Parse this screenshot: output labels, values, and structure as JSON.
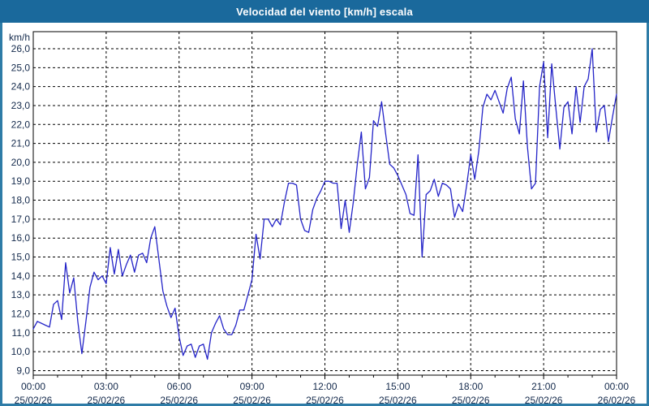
{
  "window": {
    "title": "Velocidad del viento [km/h] escala"
  },
  "colors": {
    "titlebar_bg": "#1a699c",
    "title_text": "#ffffff",
    "frame": "#2e7ca7",
    "plot_background": "#ffffff",
    "grid": "#000000",
    "axis_text": "#13294b",
    "line": "#2424c8"
  },
  "chart_data": {
    "type": "line",
    "title": "Velocidad del viento [km/h] escala",
    "ylabel": "km/h",
    "xlabel": "",
    "ylim": [
      9,
      26
    ],
    "xlim_hours": [
      0,
      24
    ],
    "grid": "dashed-black-on",
    "legend": "none",
    "y_tick_values": [
      26,
      25,
      24,
      23,
      22,
      21,
      20,
      19,
      18,
      17,
      16,
      15,
      14,
      13,
      12,
      11,
      10,
      9
    ],
    "y_tick_labels": [
      "26,0",
      "25,0",
      "24,0",
      "23,0",
      "22,0",
      "21,0",
      "20,0",
      "19,0",
      "18,0",
      "17,0",
      "16,0",
      "15,0",
      "14,0",
      "13,0",
      "12,0",
      "11,0",
      "10,0",
      "9,0"
    ],
    "x_ticks": [
      {
        "hours": 0,
        "time": "00:00",
        "date": "25/02/26"
      },
      {
        "hours": 3,
        "time": "03:00",
        "date": "25/02/26"
      },
      {
        "hours": 6,
        "time": "06:00",
        "date": "25/02/26"
      },
      {
        "hours": 9,
        "time": "09:00",
        "date": "25/02/26"
      },
      {
        "hours": 12,
        "time": "12:00",
        "date": "25/02/26"
      },
      {
        "hours": 15,
        "time": "15:00",
        "date": "25/02/26"
      },
      {
        "hours": 18,
        "time": "18:00",
        "date": "25/02/26"
      },
      {
        "hours": 21,
        "time": "21:00",
        "date": "25/02/26"
      },
      {
        "hours": 24,
        "time": "00:00",
        "date": "26/02/26"
      }
    ],
    "x_minor_tick_every_hours": 1,
    "series": [
      {
        "name": "Velocidad del viento",
        "color": "#2424c8",
        "x_minutes": [
          0,
          10,
          20,
          30,
          40,
          50,
          60,
          70,
          80,
          90,
          100,
          110,
          120,
          130,
          140,
          150,
          160,
          170,
          180,
          190,
          200,
          210,
          220,
          230,
          240,
          250,
          260,
          270,
          280,
          290,
          300,
          310,
          320,
          330,
          340,
          350,
          360,
          370,
          380,
          390,
          400,
          410,
          420,
          430,
          440,
          450,
          460,
          470,
          480,
          490,
          500,
          510,
          520,
          530,
          540,
          550,
          560,
          570,
          580,
          590,
          600,
          610,
          620,
          630,
          640,
          650,
          660,
          670,
          680,
          690,
          700,
          710,
          720,
          730,
          740,
          750,
          760,
          770,
          780,
          790,
          800,
          810,
          820,
          830,
          840,
          850,
          860,
          870,
          880,
          890,
          900,
          910,
          920,
          930,
          940,
          950,
          960,
          970,
          980,
          990,
          1000,
          1010,
          1020,
          1030,
          1040,
          1050,
          1060,
          1070,
          1080,
          1090,
          1100,
          1110,
          1120,
          1130,
          1140,
          1150,
          1160,
          1170,
          1180,
          1190,
          1200,
          1210,
          1220,
          1230,
          1240,
          1250,
          1260,
          1270,
          1280,
          1290,
          1300,
          1310,
          1320,
          1330,
          1340,
          1350,
          1360,
          1370,
          1380,
          1390,
          1400,
          1410,
          1420,
          1430,
          1440
        ],
        "values": [
          11.2,
          11.6,
          11.5,
          11.4,
          11.3,
          12.5,
          12.7,
          11.7,
          14.7,
          13.1,
          13.9,
          11.6,
          9.9,
          11.6,
          13.4,
          14.2,
          13.8,
          14.0,
          13.6,
          15.5,
          14.1,
          15.4,
          14.0,
          14.6,
          15.1,
          14.2,
          15.1,
          15.2,
          14.7,
          16.0,
          16.6,
          14.9,
          13.2,
          12.4,
          11.8,
          12.3,
          10.8,
          9.8,
          10.3,
          10.4,
          9.7,
          10.3,
          10.4,
          9.6,
          11.0,
          11.5,
          11.9,
          11.2,
          10.9,
          10.9,
          11.4,
          12.2,
          12.2,
          13.0,
          13.8,
          16.2,
          14.9,
          17.0,
          17.0,
          16.6,
          17.0,
          16.7,
          17.9,
          18.9,
          18.9,
          18.8,
          17.0,
          16.4,
          16.3,
          17.5,
          18.1,
          18.5,
          19.0,
          19.0,
          18.9,
          18.9,
          16.5,
          18.0,
          16.3,
          17.9,
          19.9,
          21.6,
          18.6,
          19.2,
          22.2,
          21.9,
          23.2,
          21.5,
          19.9,
          19.7,
          19.3,
          18.8,
          18.3,
          17.3,
          17.2,
          20.4,
          15.0,
          18.3,
          18.5,
          19.1,
          18.2,
          18.9,
          18.8,
          18.6,
          17.1,
          17.8,
          17.4,
          18.8,
          20.4,
          19.1,
          20.6,
          22.9,
          23.6,
          23.3,
          23.8,
          23.2,
          22.6,
          23.9,
          24.5,
          22.3,
          21.5,
          24.3,
          20.8,
          18.6,
          18.9,
          24.0,
          25.3,
          21.3,
          25.2,
          22.9,
          20.7,
          22.9,
          23.2,
          21.5,
          24.0,
          22.1,
          24.0,
          24.4,
          26.0,
          21.6,
          22.8,
          23.0,
          21.1,
          22.4,
          23.6
        ]
      }
    ]
  }
}
